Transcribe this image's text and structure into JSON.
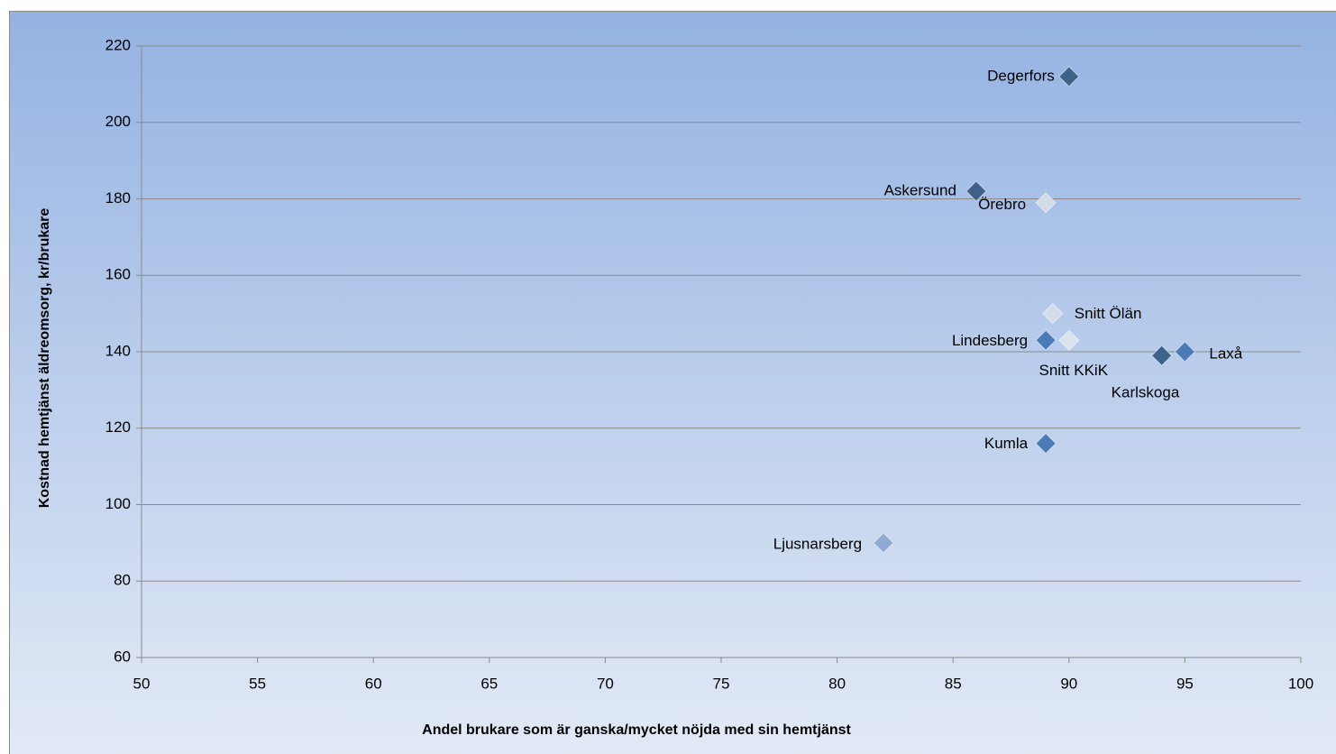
{
  "chart_data": {
    "type": "scatter",
    "x_label": "Andel brukare som är ganska/mycket  nöjda med sin hemtjänst",
    "y_label": "Kostnad hemtjänst äldreomsorg, kr/brukare",
    "points": [
      {
        "label": "Degerfors",
        "x": 90,
        "y": 212,
        "color": "#3e6189"
      },
      {
        "label": "Askersund",
        "x": 86,
        "y": 182,
        "color": "#3e6189"
      },
      {
        "label": "Örebro",
        "x": 89,
        "y": 179,
        "color": "#d3dbe6"
      },
      {
        "label": "Snitt Ölän",
        "x": 89.3,
        "y": 150,
        "color": "#d3dbe6"
      },
      {
        "label": "Lindesberg",
        "x": 89,
        "y": 143,
        "color": "#4a7bb7"
      },
      {
        "label": "Snitt KKiK",
        "x": 90,
        "y": 143,
        "color": "#dde3ec"
      },
      {
        "label": "Karlskoga",
        "x": 94,
        "y": 139,
        "color": "#3e6189"
      },
      {
        "label": "Laxå",
        "x": 95,
        "y": 140,
        "color": "#4a7bb7"
      },
      {
        "label": "Kumla",
        "x": 89,
        "y": 116,
        "color": "#4a7bb7"
      },
      {
        "label": "Ljusnarsberg",
        "x": 82,
        "y": 90,
        "color": "#8fabd4"
      }
    ],
    "xlim": [
      50,
      100
    ],
    "xticks": [
      50,
      55,
      60,
      65,
      70,
      75,
      80,
      85,
      90,
      95,
      100
    ],
    "ylim": [
      60,
      220
    ],
    "yticks": [
      60,
      80,
      100,
      120,
      140,
      160,
      180,
      200,
      220
    ],
    "grid": true
  }
}
